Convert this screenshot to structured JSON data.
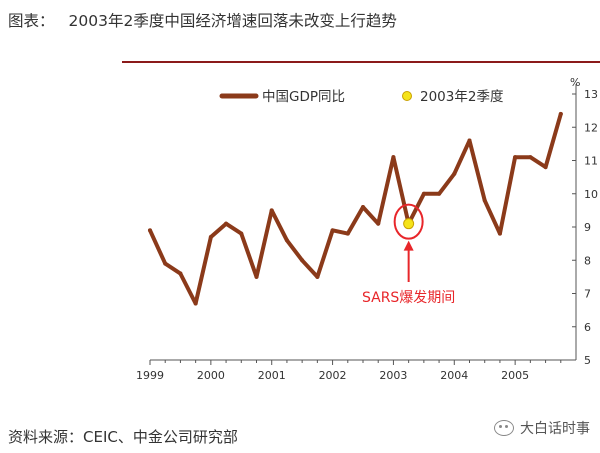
{
  "figure": {
    "label": "图表：",
    "title": "2003年2季度中国经济增速回落未改变上行趋势",
    "source": "资料来源：CEIC、中金公司研究部",
    "watermark": "大白话时事"
  },
  "colors": {
    "line": "#8b3a1a",
    "rule": "#8b1a1a",
    "marker_fill": "#f5e31a",
    "highlight": "#e8262a",
    "axis": "#555555"
  },
  "chart_data": {
    "type": "line",
    "title": "2003年2季度中国经济增速回落未改变上行趋势",
    "xlabel": "",
    "ylabel": "%",
    "x_tick_labels": [
      "1999",
      "2000",
      "2001",
      "2002",
      "2003",
      "2004",
      "2005"
    ],
    "x_range": [
      1999,
      2006
    ],
    "ylim": [
      5,
      13
    ],
    "y_ticks": [
      5,
      6,
      7,
      8,
      9,
      10,
      11,
      12,
      13
    ],
    "y_axis_side": "right",
    "grid": false,
    "legend_position": "top",
    "series": [
      {
        "name": "中国GDP同比",
        "x": [
          "1999Q1",
          "1999Q2",
          "1999Q3",
          "1999Q4",
          "2000Q1",
          "2000Q2",
          "2000Q3",
          "2000Q4",
          "2001Q1",
          "2001Q2",
          "2001Q3",
          "2001Q4",
          "2002Q1",
          "2002Q2",
          "2002Q3",
          "2002Q4",
          "2003Q1",
          "2003Q2",
          "2003Q3",
          "2003Q4",
          "2004Q1",
          "2004Q2",
          "2004Q3",
          "2004Q4",
          "2005Q1",
          "2005Q2",
          "2005Q3",
          "2005Q4"
        ],
        "values": [
          8.9,
          7.9,
          7.6,
          6.7,
          8.7,
          9.1,
          8.8,
          7.5,
          9.5,
          8.6,
          8.0,
          7.5,
          8.9,
          8.8,
          9.6,
          9.1,
          11.1,
          9.1,
          10.0,
          10.0,
          10.6,
          11.6,
          9.8,
          8.8,
          11.1,
          11.1,
          10.8,
          12.4
        ]
      }
    ],
    "highlight_point": {
      "name": "2003年2季度",
      "x": "2003Q2",
      "value": 9.1
    },
    "annotation": {
      "text": "SARS爆发期间",
      "target": "2003Q2"
    }
  }
}
